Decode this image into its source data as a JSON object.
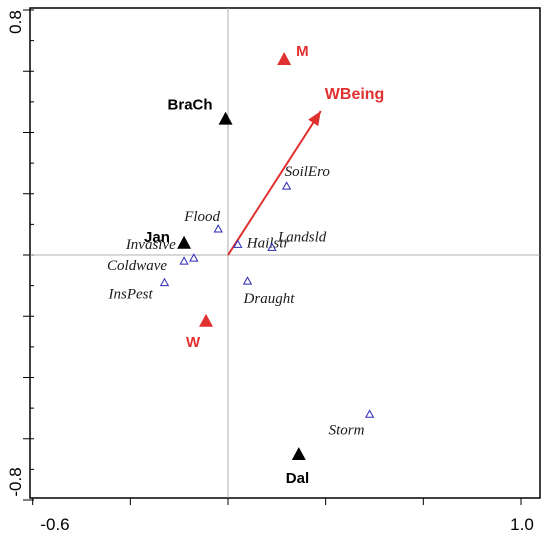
{
  "chart_data": {
    "type": "scatter",
    "title": "",
    "xlabel": "",
    "ylabel": "",
    "xlim": [
      -0.6,
      1.0
    ],
    "ylim": [
      -0.8,
      0.8
    ],
    "x_tick_labels": [
      "-0.6",
      "1.0"
    ],
    "y_tick_labels": [
      "0.8",
      "-0.8"
    ],
    "grid": false,
    "reference_lines": {
      "x": 0,
      "y": 0
    },
    "species": [
      {
        "name": "Flood",
        "x": -0.02,
        "y": 0.085
      },
      {
        "name": "Invasive",
        "x": -0.07,
        "y": -0.01
      },
      {
        "name": "Coldwave",
        "x": -0.09,
        "y": -0.02
      },
      {
        "name": "InsPest",
        "x": -0.13,
        "y": -0.09
      },
      {
        "name": "Hailstr",
        "x": 0.02,
        "y": 0.035
      },
      {
        "name": "Landsld",
        "x": 0.09,
        "y": 0.025
      },
      {
        "name": "SoilEro",
        "x": 0.12,
        "y": 0.225
      },
      {
        "name": "Draught",
        "x": 0.04,
        "y": -0.085
      },
      {
        "name": "Storm",
        "x": 0.29,
        "y": -0.52
      }
    ],
    "sites": [
      {
        "name": "BraCh",
        "x": -0.005,
        "y": 0.445,
        "color": "#000000"
      },
      {
        "name": "Jan",
        "x": -0.09,
        "y": 0.04,
        "color": "#000000"
      },
      {
        "name": "Dal",
        "x": 0.145,
        "y": -0.65,
        "color": "#000000"
      },
      {
        "name": "M",
        "x": 0.115,
        "y": 0.64,
        "color": "#e03030"
      },
      {
        "name": "W",
        "x": -0.045,
        "y": -0.215,
        "color": "#e03030"
      }
    ],
    "env_vector": {
      "name": "WBeing",
      "x": 0.19,
      "y": 0.47,
      "color": "#e03030"
    }
  }
}
